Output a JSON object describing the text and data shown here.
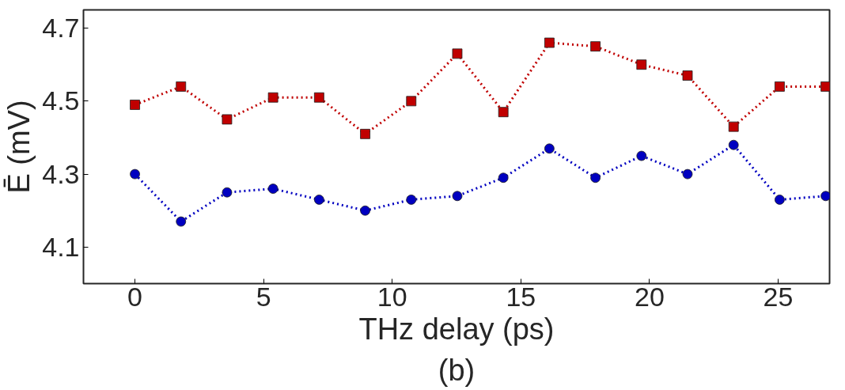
{
  "chart_data": {
    "type": "line",
    "xlabel": "THz delay (ps)",
    "ylabel": "Ē (mV)",
    "annotations": [
      "(b)"
    ],
    "x": [
      0,
      1.79,
      3.58,
      5.37,
      7.16,
      8.95,
      10.74,
      12.53,
      14.32,
      16.11,
      17.9,
      19.69,
      21.48,
      23.27,
      25.06,
      26.85
    ],
    "series": [
      {
        "color": "#c00000",
        "marker": "square",
        "values": [
          4.49,
          4.54,
          4.45,
          4.51,
          4.51,
          4.41,
          4.5,
          4.63,
          4.47,
          4.66,
          4.65,
          4.6,
          4.57,
          4.43,
          4.54,
          4.54
        ]
      },
      {
        "color": "#0000c0",
        "marker": "circle",
        "values": [
          4.3,
          4.17,
          4.25,
          4.26,
          4.23,
          4.2,
          4.23,
          4.24,
          4.29,
          4.37,
          4.29,
          4.35,
          4.3,
          4.38,
          4.23,
          4.24
        ]
      }
    ],
    "line_style": "dotted",
    "xlim": [
      -2,
      27
    ],
    "ylim": [
      4.0,
      4.75
    ],
    "xticks": [
      0,
      5,
      10,
      15,
      20,
      25
    ],
    "yticks": [
      4.1,
      4.3,
      4.5,
      4.7
    ],
    "grid": false
  }
}
